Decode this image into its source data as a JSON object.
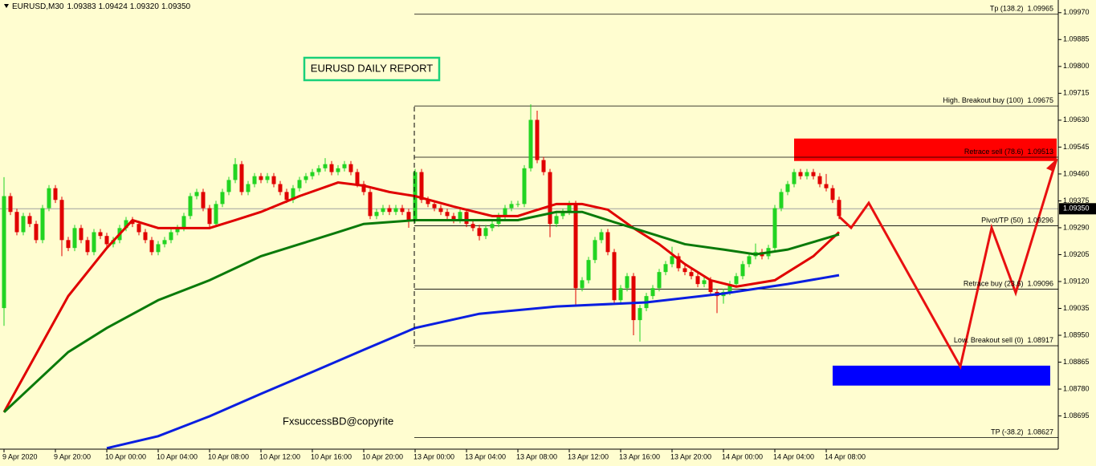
{
  "chart_data": {
    "type": "candlestick",
    "header": {
      "symbol": "EURUSD,M30",
      "open": 1.09383,
      "high": 1.09424,
      "low": 1.0932,
      "close": 1.0935
    },
    "header_labels": {
      "close": "1.09350",
      "low": "1.09320"
    },
    "title": "EURUSD DAILY REPORT",
    "watermark": "FxsuccessBD@copyrite",
    "last_price": {
      "value": 1.0935,
      "label": "1.09350"
    },
    "ylim": [
      1.0859,
      1.1001
    ],
    "yticks": [
      {
        "value": 1.0997,
        "label": "1.09970"
      },
      1.09885,
      {
        "value": 1.098,
        "label": "1.09800"
      },
      1.09715,
      {
        "value": 1.0963,
        "label": "1.09630"
      },
      1.09545,
      {
        "value": 1.0946,
        "label": "1.09460"
      },
      1.09375,
      {
        "value": 1.0929,
        "label": "1.09290"
      },
      1.09205,
      {
        "value": 1.0912,
        "label": "1.09120"
      },
      1.09035,
      {
        "value": 1.0895,
        "label": "1.08950"
      },
      1.08865,
      {
        "value": 1.0878,
        "label": "1.08780"
      },
      1.08695
    ],
    "categories": [
      "9 Apr 2020",
      null,
      null,
      null,
      null,
      null,
      null,
      null,
      "9 Apr 20:00",
      null,
      null,
      null,
      null,
      null,
      null,
      null,
      "10 Apr 00:00",
      null,
      null,
      null,
      null,
      null,
      null,
      null,
      "10 Apr 04:00",
      null,
      null,
      null,
      null,
      null,
      null,
      null,
      "10 Apr 08:00",
      null,
      null,
      null,
      null,
      null,
      null,
      null,
      "10 Apr 12:00",
      null,
      null,
      null,
      null,
      null,
      null,
      null,
      "10 Apr 16:00",
      null,
      null,
      null,
      null,
      null,
      null,
      null,
      "10 Apr 20:00",
      null,
      null,
      null,
      null,
      null,
      null,
      null,
      "13 Apr 00:00",
      null,
      null,
      null,
      null,
      null,
      null,
      null,
      "13 Apr 04:00",
      null,
      null,
      null,
      null,
      null,
      null,
      null,
      "13 Apr 08:00",
      null,
      null,
      null,
      null,
      null,
      null,
      null,
      "13 Apr 12:00",
      null,
      null,
      null,
      null,
      null,
      null,
      null,
      "13 Apr 16:00",
      null,
      null,
      null,
      null,
      null,
      null,
      null,
      "13 Apr 20:00",
      null,
      null,
      null,
      null,
      null,
      null,
      null,
      "14 Apr 00:00",
      null,
      null,
      null,
      null,
      null,
      null,
      null,
      "14 Apr 04:00",
      null,
      null,
      null,
      null,
      null,
      null,
      null,
      "14 Apr 08:00",
      null,
      null
    ],
    "open": [
      1.09036,
      1.0939,
      1.0934,
      1.09276,
      1.09327,
      1.09302,
      1.09251,
      1.09352,
      1.09415,
      1.09378,
      1.09251,
      1.09226,
      1.09289,
      1.09251,
      1.09213,
      1.09276,
      1.09264,
      1.09238,
      1.09251,
      1.09289,
      1.09314,
      1.09302,
      1.09276,
      1.09251,
      1.09213,
      1.09238,
      1.09251,
      1.09276,
      1.09289,
      1.09327,
      1.0939,
      1.09403,
      1.09352,
      1.09302,
      1.09365,
      1.09403,
      1.09441,
      1.09491,
      1.09403,
      1.09428,
      1.09453,
      1.09441,
      1.09453,
      1.09428,
      1.09403,
      1.09378,
      1.09415,
      1.09441,
      1.09453,
      1.09466,
      1.09478,
      1.09491,
      1.09466,
      1.09478,
      1.09491,
      1.09466,
      1.09428,
      1.09403,
      1.09327,
      1.0934,
      1.09352,
      1.0934,
      1.09352,
      1.0934,
      1.09314,
      1.09466,
      1.09378,
      1.09365,
      1.09352,
      1.0934,
      1.09327,
      1.09314,
      1.0934,
      1.09302,
      1.09289,
      1.09264,
      1.09289,
      1.09302,
      1.09327,
      1.09352,
      1.09365,
      1.09365,
      1.09478,
      1.09631,
      1.09504,
      1.09466,
      1.09302,
      1.09327,
      1.0934,
      1.09365,
      1.09099,
      1.09124,
      1.09188,
      1.09251,
      1.09276,
      1.09213,
      1.09061,
      1.09099,
      1.09137,
      1.08998,
      1.09036,
      1.09074,
      1.09099,
      1.0915,
      1.09175,
      1.092,
      1.09162,
      1.0915,
      1.09137,
      1.09112,
      1.09124,
      1.09087,
      1.09074,
      1.09087,
      1.09112,
      1.09137,
      1.09175,
      1.092,
      1.09213,
      1.092,
      1.09226,
      1.09352,
      1.09403,
      1.09428,
      1.09466,
      1.09453,
      1.09466,
      1.09453,
      1.09428,
      1.09415,
      1.09378
    ],
    "high": [
      1.0945,
      1.094,
      1.0935,
      1.09337,
      1.09337,
      1.09312,
      1.09362,
      1.09425,
      1.09425,
      1.09388,
      1.09261,
      1.09299,
      1.09299,
      1.09261,
      1.09286,
      1.09286,
      1.09274,
      1.09261,
      1.09299,
      1.09324,
      1.09324,
      1.09312,
      1.09286,
      1.09261,
      1.09248,
      1.09261,
      1.09286,
      1.09299,
      1.09337,
      1.094,
      1.09413,
      1.09413,
      1.09362,
      1.09375,
      1.09413,
      1.09451,
      1.0951,
      1.09501,
      1.09438,
      1.09463,
      1.09463,
      1.09463,
      1.09463,
      1.09438,
      1.09413,
      1.09425,
      1.09451,
      1.09463,
      1.09476,
      1.09488,
      1.0951,
      1.09501,
      1.09488,
      1.09501,
      1.09501,
      1.09476,
      1.09438,
      1.09413,
      1.0935,
      1.09362,
      1.09362,
      1.09362,
      1.09362,
      1.0935,
      1.09476,
      1.09476,
      1.09388,
      1.09375,
      1.09362,
      1.0935,
      1.09337,
      1.0935,
      1.0935,
      1.09312,
      1.09299,
      1.09299,
      1.09312,
      1.09337,
      1.09362,
      1.09375,
      1.09375,
      1.09488,
      1.0968,
      1.0966,
      1.09514,
      1.09476,
      1.09337,
      1.0935,
      1.09375,
      1.09375,
      1.09134,
      1.09198,
      1.09261,
      1.09286,
      1.09286,
      1.09223,
      1.09109,
      1.09147,
      1.09147,
      1.09046,
      1.09084,
      1.09109,
      1.0916,
      1.09185,
      1.0923,
      1.0921,
      1.09172,
      1.0916,
      1.09147,
      1.09134,
      1.09134,
      1.09097,
      1.09097,
      1.09122,
      1.09147,
      1.09185,
      1.0921,
      1.0924,
      1.09223,
      1.09236,
      1.09362,
      1.09413,
      1.09438,
      1.09476,
      1.09476,
      1.09476,
      1.09476,
      1.09463,
      1.0946,
      1.09425,
      1.09388
    ],
    "low": [
      1.0898,
      1.0933,
      1.09266,
      1.09266,
      1.09292,
      1.09241,
      1.09241,
      1.09342,
      1.09368,
      1.092,
      1.09216,
      1.09216,
      1.09241,
      1.09203,
      1.09203,
      1.09254,
      1.09228,
      1.09228,
      1.09241,
      1.09279,
      1.09292,
      1.09266,
      1.09241,
      1.09203,
      1.09203,
      1.09228,
      1.09241,
      1.09266,
      1.09279,
      1.09317,
      1.0938,
      1.09342,
      1.09292,
      1.09292,
      1.09355,
      1.09393,
      1.09431,
      1.09393,
      1.09393,
      1.09418,
      1.09431,
      1.09431,
      1.09418,
      1.09393,
      1.09368,
      1.09368,
      1.09405,
      1.09431,
      1.09443,
      1.09456,
      1.09468,
      1.09456,
      1.09456,
      1.09468,
      1.09456,
      1.09418,
      1.09393,
      1.09317,
      1.09317,
      1.0933,
      1.0933,
      1.0933,
      1.0933,
      1.0929,
      1.09304,
      1.09368,
      1.09355,
      1.09342,
      1.0933,
      1.09317,
      1.09304,
      1.09304,
      1.09292,
      1.09279,
      1.0925,
      1.09254,
      1.09279,
      1.09292,
      1.09317,
      1.09342,
      1.09355,
      1.09355,
      1.09468,
      1.09494,
      1.09456,
      1.0926,
      1.09292,
      1.09317,
      1.0933,
      1.0904,
      1.09089,
      1.09114,
      1.09178,
      1.09241,
      1.09203,
      1.09051,
      1.09051,
      1.09089,
      1.0895,
      1.0893,
      1.09026,
      1.09064,
      1.09089,
      1.0914,
      1.09165,
      1.09152,
      1.0914,
      1.09127,
      1.09102,
      1.09102,
      1.09077,
      1.0902,
      1.0905,
      1.09077,
      1.09102,
      1.09127,
      1.09165,
      1.0919,
      1.0919,
      1.0919,
      1.09216,
      1.09342,
      1.09393,
      1.09418,
      1.09443,
      1.09443,
      1.09443,
      1.09418,
      1.09405,
      1.09368,
      1.09317
    ],
    "close": [
      1.0939,
      1.0934,
      1.09276,
      1.09327,
      1.09302,
      1.09251,
      1.09352,
      1.09415,
      1.09378,
      1.09251,
      1.09226,
      1.09289,
      1.09251,
      1.09213,
      1.09276,
      1.09264,
      1.09238,
      1.09251,
      1.09289,
      1.09314,
      1.09302,
      1.09276,
      1.09251,
      1.09213,
      1.09238,
      1.09251,
      1.09276,
      1.09289,
      1.09327,
      1.0939,
      1.09403,
      1.09352,
      1.09302,
      1.09365,
      1.09403,
      1.09441,
      1.09491,
      1.09403,
      1.09428,
      1.09453,
      1.09441,
      1.09453,
      1.09428,
      1.09403,
      1.09378,
      1.09415,
      1.09441,
      1.09453,
      1.09466,
      1.09478,
      1.09491,
      1.09466,
      1.09478,
      1.09491,
      1.09466,
      1.09428,
      1.09403,
      1.09327,
      1.0934,
      1.09352,
      1.0934,
      1.09352,
      1.0934,
      1.09314,
      1.09466,
      1.09378,
      1.09365,
      1.09352,
      1.0934,
      1.09327,
      1.09314,
      1.0934,
      1.09302,
      1.09289,
      1.09264,
      1.09289,
      1.09302,
      1.09327,
      1.09352,
      1.09365,
      1.09365,
      1.09478,
      1.09631,
      1.09504,
      1.09466,
      1.09302,
      1.09327,
      1.0934,
      1.09365,
      1.09099,
      1.09124,
      1.09188,
      1.09251,
      1.09276,
      1.09213,
      1.09061,
      1.09099,
      1.09137,
      1.08998,
      1.09036,
      1.09074,
      1.09099,
      1.0915,
      1.09175,
      1.092,
      1.09162,
      1.0915,
      1.09137,
      1.09112,
      1.09124,
      1.09087,
      1.09074,
      1.09087,
      1.09112,
      1.09137,
      1.09175,
      1.092,
      1.09213,
      1.092,
      1.09226,
      1.09352,
      1.09403,
      1.09428,
      1.09466,
      1.09453,
      1.09466,
      1.09453,
      1.09428,
      1.09415,
      1.09378,
      1.09327
    ],
    "up_color": "#22d422",
    "down_color": "#e00000",
    "moving_averages": [
      {
        "color": "#e00000",
        "x": [
          0,
          10,
          16,
          20,
          24,
          28,
          32,
          36,
          40,
          46,
          52,
          56,
          60,
          64,
          70,
          76,
          80,
          82,
          86,
          90,
          94,
          98,
          102,
          106,
          110,
          114,
          120,
          126,
          130
        ],
        "values": [
          1.08707,
          1.09074,
          1.09226,
          1.09314,
          1.09289,
          1.09289,
          1.09289,
          1.09314,
          1.0934,
          1.0939,
          1.09433,
          1.09423,
          1.09403,
          1.0939,
          1.09357,
          1.09327,
          1.09327,
          1.0934,
          1.09365,
          1.09365,
          1.09347,
          1.09289,
          1.09238,
          1.09175,
          1.09124,
          1.09104,
          1.09124,
          1.092,
          1.09276
        ]
      },
      {
        "color": "#0a7a0a",
        "x": [
          0,
          10,
          16,
          24,
          32,
          40,
          46,
          52,
          56,
          64,
          74,
          80,
          86,
          90,
          94,
          100,
          106,
          112,
          117,
          122,
          130
        ],
        "values": [
          1.08707,
          1.08897,
          1.08973,
          1.09061,
          1.09124,
          1.092,
          1.09238,
          1.09276,
          1.09302,
          1.09314,
          1.09314,
          1.09314,
          1.0934,
          1.0934,
          1.09314,
          1.09276,
          1.09238,
          1.09221,
          1.09206,
          1.09221,
          1.09269
        ]
      },
      {
        "color": "#0a1ee0",
        "x": [
          16,
          24,
          32,
          40,
          48,
          56,
          64,
          74,
          86,
          100,
          112,
          122,
          130
        ],
        "values": [
          1.08593,
          1.08631,
          1.08694,
          1.08765,
          1.08834,
          1.08904,
          1.08973,
          1.09018,
          1.09041,
          1.09054,
          1.09082,
          1.09112,
          1.0914
        ]
      }
    ],
    "levels": [
      {
        "name": "Tp (138.2)",
        "value": 1.09965
      },
      {
        "name": "High. Breakout buy (100)",
        "value": 1.09675
      },
      {
        "name": "Retrace sell (78.6)",
        "value": 1.09513
      },
      {
        "name": "Pivot/TP (50)",
        "value": 1.09296
      },
      {
        "name": "Retrace buy (23.6)",
        "value": 1.09096
      },
      {
        "name": "Low. Breakout sell (0)",
        "value": 1.08917
      },
      {
        "name": "TP (-38.2)",
        "value": 1.08627
      }
    ],
    "zones": [
      {
        "color": "#ff0000",
        "top": 1.09572,
        "bottom": 1.09501
      },
      {
        "color": "#0000ff",
        "top": 1.08854,
        "bottom": 1.08791
      }
    ]
  }
}
